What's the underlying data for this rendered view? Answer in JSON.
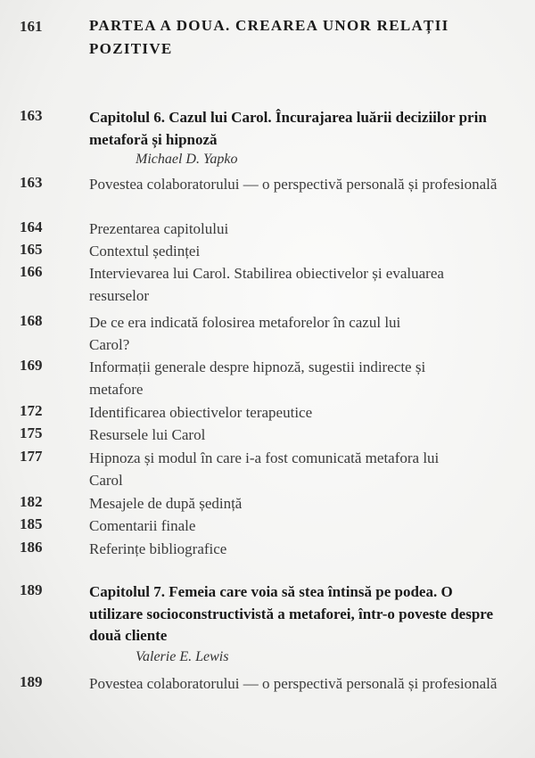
{
  "part": {
    "page": "161",
    "title": "PARTEA A DOUA. CREAREA UNOR RELAȚII POZITIVE"
  },
  "chapter6": {
    "page": "163",
    "title": "Capitolul 6. Cazul lui Carol. Încurajarea luării deciziilor prin metaforă și hipnoză",
    "author": "Michael D. Yapko",
    "sections": [
      {
        "page": "163",
        "title": "Povestea colaboratorului — o perspectivă personală și profesională"
      },
      {
        "page": "164",
        "title": "Prezentarea capitolului"
      },
      {
        "page": "165",
        "title": "Contextul ședinței"
      },
      {
        "page": "166",
        "title": "Intervievarea lui Carol. Stabilirea obiectivelor și evaluarea resurselor"
      },
      {
        "page": "168",
        "title": "De ce era indicată folosirea metaforelor în cazul lui Carol?"
      },
      {
        "page": "169",
        "title": "Informații generale despre hipnoză, sugestii indirecte și metafore"
      },
      {
        "page": "172",
        "title": "Identificarea obiectivelor terapeutice"
      },
      {
        "page": "175",
        "title": "Resursele lui Carol"
      },
      {
        "page": "177",
        "title": "Hipnoza și modul în care i-a fost comunicată metafora lui Carol"
      },
      {
        "page": "182",
        "title": "Mesajele de după ședință"
      },
      {
        "page": "185",
        "title": "Comentarii finale"
      },
      {
        "page": "186",
        "title": "Referințe bibliografice"
      }
    ]
  },
  "chapter7": {
    "page": "189",
    "title": "Capitolul 7. Femeia care voia să stea întinsă pe podea. O utilizare socioconstructivistă a metaforei, într-o poveste despre două cliente",
    "author": "Valerie E. Lewis",
    "sections": [
      {
        "page": "189",
        "title": "Povestea colaboratorului — o perspectivă personală și profesională"
      }
    ]
  }
}
